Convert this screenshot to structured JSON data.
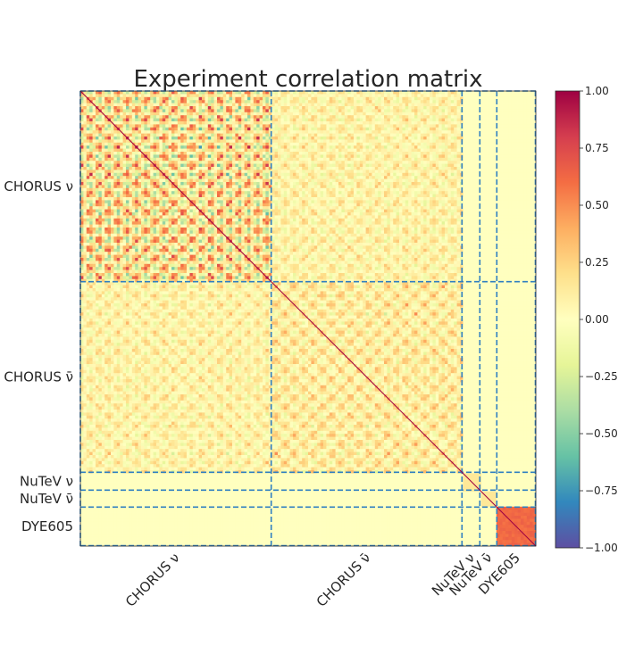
{
  "chart_data": {
    "type": "heatmap",
    "title": "Experiment correlation matrix",
    "blocks": [
      {
        "label": "CHORUS ν",
        "points": 416
      },
      {
        "label": "CHORUS ν̄",
        "points": 416
      },
      {
        "label": "NuTeV ν",
        "points": 39
      },
      {
        "label": "NuTeV ν̄",
        "points": 37
      },
      {
        "label": "DYE605",
        "points": 85
      }
    ],
    "colorbar": {
      "colormap": "Spectral_r",
      "vmin": -1.0,
      "vmax": 1.0,
      "ticks": [
        "1.00",
        "0.75",
        "0.50",
        "0.25",
        "0.00",
        "−0.25",
        "−0.50",
        "−0.75",
        "−1.00"
      ],
      "tick_values": [
        1.0,
        0.75,
        0.5,
        0.25,
        0.0,
        -0.25,
        -0.5,
        -0.75,
        -1.0
      ]
    },
    "block_correlations": {
      "within_chorus_nu": "strongly structured, values ranging about -0.75 to 0.80",
      "within_chorus_nubar": "moderately structured, values ranging about -0.25 to 0.40",
      "chorus_nu_vs_nubar": "weak-moderate, values about -0.2 to 0.4",
      "nutev_blocks": 0.15,
      "dye605_block": 0.62,
      "off_block": 0.0,
      "diagonal": 1.0
    },
    "divider_color": "#2f7fc1"
  }
}
